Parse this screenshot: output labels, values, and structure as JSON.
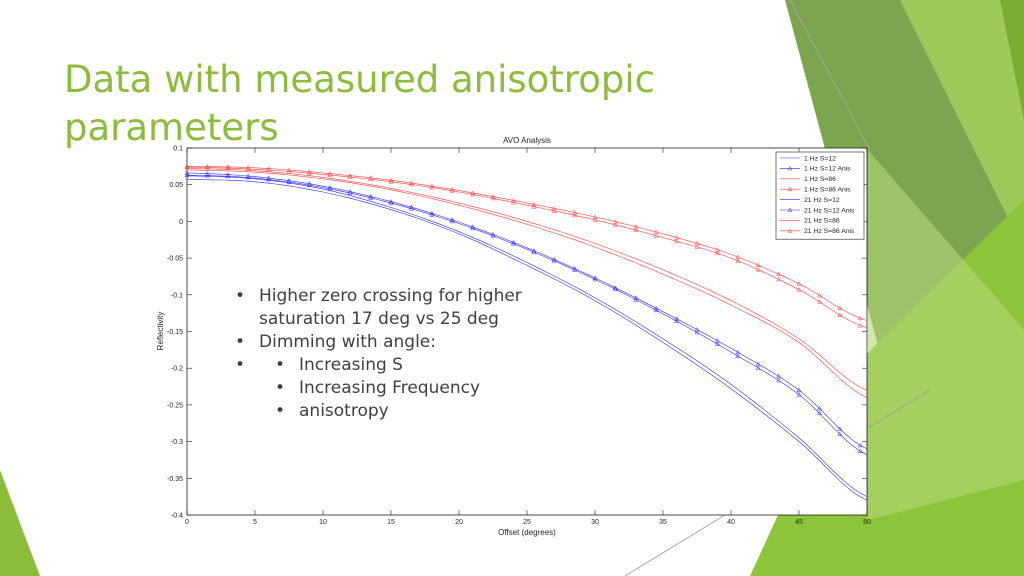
{
  "slide": {
    "title_line1": "Data with measured anisotropic",
    "title_line2": "parameters",
    "accent_color": "#8cbd3a",
    "bullets": {
      "b1": "Higher zero crossing for higher saturation 17 deg vs 25 deg",
      "b2": "Dimming with angle:",
      "sub": [
        "Increasing S",
        "Increasing Frequency",
        "anisotropy"
      ]
    }
  },
  "chart_data": {
    "type": "line",
    "title": "AVO Analysis",
    "xlabel": "Offset (degrees)",
    "ylabel": "Reflectivity",
    "xlim": [
      0,
      50
    ],
    "ylim": [
      -0.4,
      0.1
    ],
    "xticks": [
      0,
      5,
      10,
      15,
      20,
      25,
      30,
      35,
      40,
      45,
      50
    ],
    "yticks": [
      0.1,
      0.05,
      0,
      -0.05,
      -0.1,
      -0.15,
      -0.2,
      -0.25,
      -0.3,
      -0.35,
      -0.4
    ],
    "grid": false,
    "legend_position": "top-right",
    "x": [
      0,
      5,
      10,
      15,
      20,
      25,
      30,
      35,
      40,
      45,
      50
    ],
    "series": [
      {
        "name": "1 Hz S=12",
        "color": "#2b2bff",
        "marker": "none",
        "values": [
          0.062,
          0.058,
          0.044,
          0.019,
          -0.014,
          -0.056,
          -0.104,
          -0.16,
          -0.222,
          -0.295,
          -0.375
        ]
      },
      {
        "name": "1 Hz S=12 Anis",
        "color": "#2b2bff",
        "marker": "triangle",
        "values": [
          0.066,
          0.061,
          0.048,
          0.027,
          -0.001,
          -0.036,
          -0.077,
          -0.123,
          -0.173,
          -0.23,
          -0.31
        ]
      },
      {
        "name": "1 Hz S=86",
        "color": "#ff3b3b",
        "marker": "none",
        "values": [
          0.072,
          0.069,
          0.06,
          0.045,
          0.025,
          0.0,
          -0.03,
          -0.066,
          -0.108,
          -0.16,
          -0.23
        ]
      },
      {
        "name": "1 Hz S=86 Anis",
        "color": "#ff3b3b",
        "marker": "triangle",
        "values": [
          0.075,
          0.073,
          0.066,
          0.056,
          0.042,
          0.025,
          0.006,
          -0.017,
          -0.045,
          -0.085,
          -0.135
        ]
      },
      {
        "name": "21 Hz S=12",
        "color": "#2b2bff",
        "marker": "none",
        "values": [
          0.057,
          0.054,
          0.04,
          0.016,
          -0.017,
          -0.06,
          -0.108,
          -0.165,
          -0.228,
          -0.3,
          -0.38
        ]
      },
      {
        "name": "21 Hz S=12 Anis",
        "color": "#2b2bff",
        "marker": "triangle",
        "values": [
          0.063,
          0.059,
          0.046,
          0.025,
          -0.003,
          -0.038,
          -0.079,
          -0.126,
          -0.178,
          -0.236,
          -0.318
        ]
      },
      {
        "name": "21 Hz S=86",
        "color": "#ff3b3b",
        "marker": "none",
        "values": [
          0.07,
          0.067,
          0.058,
          0.043,
          0.022,
          -0.004,
          -0.035,
          -0.072,
          -0.114,
          -0.165,
          -0.24
        ]
      },
      {
        "name": "21 Hz S=86 Anis",
        "color": "#ff3b3b",
        "marker": "triangle",
        "values": [
          0.074,
          0.071,
          0.064,
          0.054,
          0.04,
          0.022,
          0.002,
          -0.022,
          -0.05,
          -0.093,
          -0.145
        ]
      }
    ]
  }
}
